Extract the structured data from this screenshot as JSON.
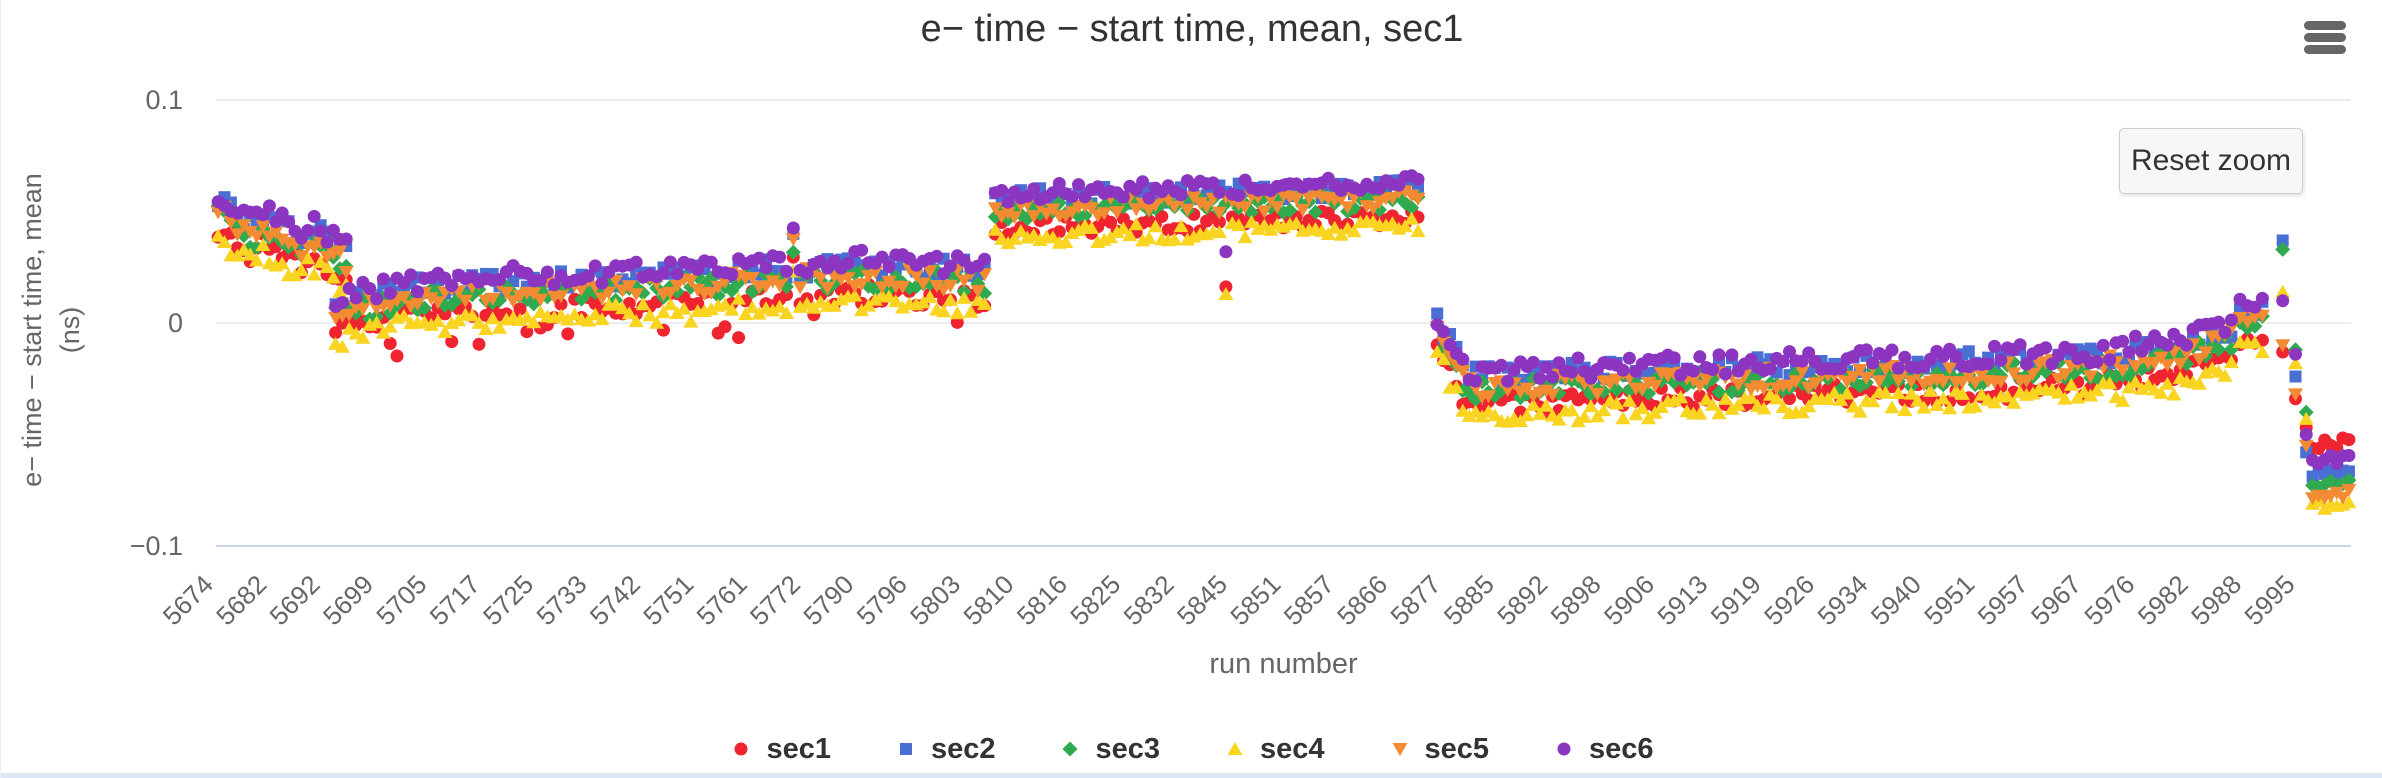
{
  "buttons": {
    "reset_zoom": "Reset zoom"
  },
  "icons": {
    "export_menu": "hamburger-menu-icon"
  },
  "chart_data": {
    "type": "scatter",
    "title": "e− time − start time, mean, sec1",
    "xlabel": "run number",
    "ylabel_lines": [
      "e− time − start time, mean",
      "(ns)"
    ],
    "ylim": [
      -0.1,
      0.1
    ],
    "yticks": [
      0.1,
      0,
      -0.1
    ],
    "ytick_labels": [
      "0.1",
      "0",
      "−0.1"
    ],
    "grid": "on",
    "legend_position": "bottom",
    "colors": {
      "gridline": "#e6e6e6",
      "axis_line": "#ccd6eb",
      "tick_text": "#666666",
      "title_text": "#333333"
    },
    "x_tick_labels": [
      "5674",
      "5682",
      "5692",
      "5699",
      "5705",
      "5717",
      "5725",
      "5733",
      "5742",
      "5751",
      "5761",
      "5772",
      "5790",
      "5796",
      "5803",
      "5810",
      "5816",
      "5825",
      "5832",
      "5845",
      "5851",
      "5857",
      "5866",
      "5877",
      "5885",
      "5892",
      "5898",
      "5906",
      "5913",
      "5919",
      "5926",
      "5934",
      "5940",
      "5951",
      "5957",
      "5967",
      "5976",
      "5982",
      "5988",
      "5995"
    ],
    "series": [
      {
        "name": "sec1",
        "color": "#ee2431",
        "marker": "circle",
        "offset": -0.007
      },
      {
        "name": "sec2",
        "color": "#4a6fd4",
        "marker": "square",
        "offset": 0.006
      },
      {
        "name": "sec3",
        "color": "#2faa4e",
        "marker": "diamond",
        "offset": 0.0
      },
      {
        "name": "sec4",
        "color": "#f9d420",
        "marker": "triangle-up",
        "offset": -0.011
      },
      {
        "name": "sec5",
        "color": "#f28b31",
        "marker": "triangle-down",
        "offset": 0.001
      },
      {
        "name": "sec6",
        "color": "#8c35c0",
        "marker": "circle",
        "offset": 0.008
      }
    ],
    "segments": [
      {
        "anchors": [
          [
            0.001,
            0.05
          ],
          [
            0.018,
            0.036
          ],
          [
            0.022,
            0.044
          ],
          [
            0.04,
            0.032
          ],
          [
            0.044,
            0.038
          ],
          [
            0.061,
            0.026
          ]
        ],
        "step": 0.003,
        "jitter": 0.0045
      },
      {
        "anchors": [
          [
            0.056,
            0.003
          ],
          [
            0.09,
            0.01
          ],
          [
            0.14,
            0.013
          ],
          [
            0.22,
            0.016
          ],
          [
            0.3,
            0.02
          ],
          [
            0.362,
            0.018
          ]
        ],
        "step": 0.0032,
        "jitter": 0.0048,
        "spikes": [
          {
            "x": 0.27,
            "dv": 0.016
          }
        ],
        "dips": {
          "series": "sec1",
          "prob": 0.1,
          "dv": -0.012
        }
      },
      {
        "anchors": [
          [
            0.365,
            0.05
          ],
          [
            0.46,
            0.052
          ],
          [
            0.565,
            0.055
          ]
        ],
        "step": 0.003,
        "jitter": 0.004,
        "spikes": [
          {
            "x": 0.473,
            "dv": -0.03,
            "series": [
              "sec1",
              "sec4",
              "sec6"
            ]
          }
        ]
      },
      {
        "anchors": [
          [
            0.572,
            -0.004
          ],
          [
            0.586,
            -0.03
          ],
          [
            0.68,
            -0.027
          ],
          [
            0.8,
            -0.024
          ],
          [
            0.88,
            -0.021
          ],
          [
            0.92,
            -0.016
          ],
          [
            0.945,
            -0.007
          ]
        ],
        "step": 0.003,
        "jitter": 0.0048
      },
      {
        "anchors": [
          [
            0.948,
            0.0
          ],
          [
            0.96,
            0.001
          ]
        ],
        "step": 0.0035,
        "jitter": 0.003
      }
    ],
    "end_fan": {
      "columns": [
        {
          "x": 0.968,
          "values": {
            "sec2": 0.037,
            "sec3": 0.033,
            "sec4": 0.014,
            "sec6": 0.01,
            "sec5": -0.01,
            "sec1": -0.013
          }
        },
        {
          "x": 0.974,
          "values": {
            "sec6": -0.014,
            "sec3": -0.012,
            "sec4": -0.018,
            "sec2": -0.024,
            "sec1": -0.034,
            "sec5": -0.032
          }
        },
        {
          "x": 0.979,
          "values": {
            "sec6": -0.05,
            "sec1": -0.047,
            "sec2": -0.058,
            "sec5": -0.055,
            "sec4": -0.043,
            "sec3": -0.04
          }
        }
      ],
      "tail": {
        "x0": 0.982,
        "x1": 0.999,
        "n": 7,
        "jitter": 0.0025,
        "values": {
          "sec1": -0.054,
          "sec6": -0.061,
          "sec2": -0.067,
          "sec3": -0.072,
          "sec5": -0.077,
          "sec4": -0.082
        }
      }
    }
  }
}
